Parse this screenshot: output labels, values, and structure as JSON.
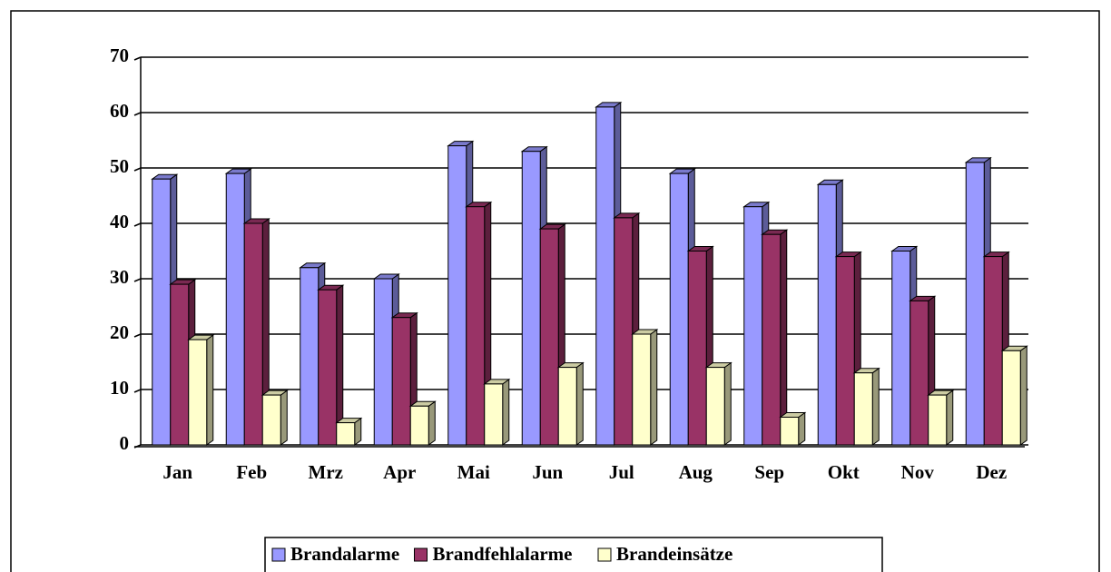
{
  "chart_data": {
    "type": "bar3d",
    "categories": [
      "Jan",
      "Feb",
      "Mrz",
      "Apr",
      "Mai",
      "Jun",
      "Jul",
      "Aug",
      "Sep",
      "Okt",
      "Nov",
      "Dez"
    ],
    "series": [
      {
        "name": "Brandalarme",
        "color": "#9999ff",
        "values": [
          48,
          49,
          32,
          30,
          54,
          53,
          61,
          49,
          43,
          47,
          35,
          51
        ]
      },
      {
        "name": "Brandfehlalarme",
        "color": "#993366",
        "values": [
          29,
          40,
          28,
          23,
          43,
          39,
          41,
          35,
          38,
          34,
          26,
          34
        ]
      },
      {
        "name": "Brandeinsätze",
        "color": "#ffffcc",
        "values": [
          19,
          9,
          4,
          7,
          11,
          14,
          20,
          14,
          5,
          13,
          9,
          17
        ]
      }
    ],
    "ylim": [
      0,
      70
    ],
    "yticks": [
      0,
      10,
      20,
      30,
      40,
      50,
      60,
      70
    ],
    "grid": true,
    "legend": "bottom"
  }
}
